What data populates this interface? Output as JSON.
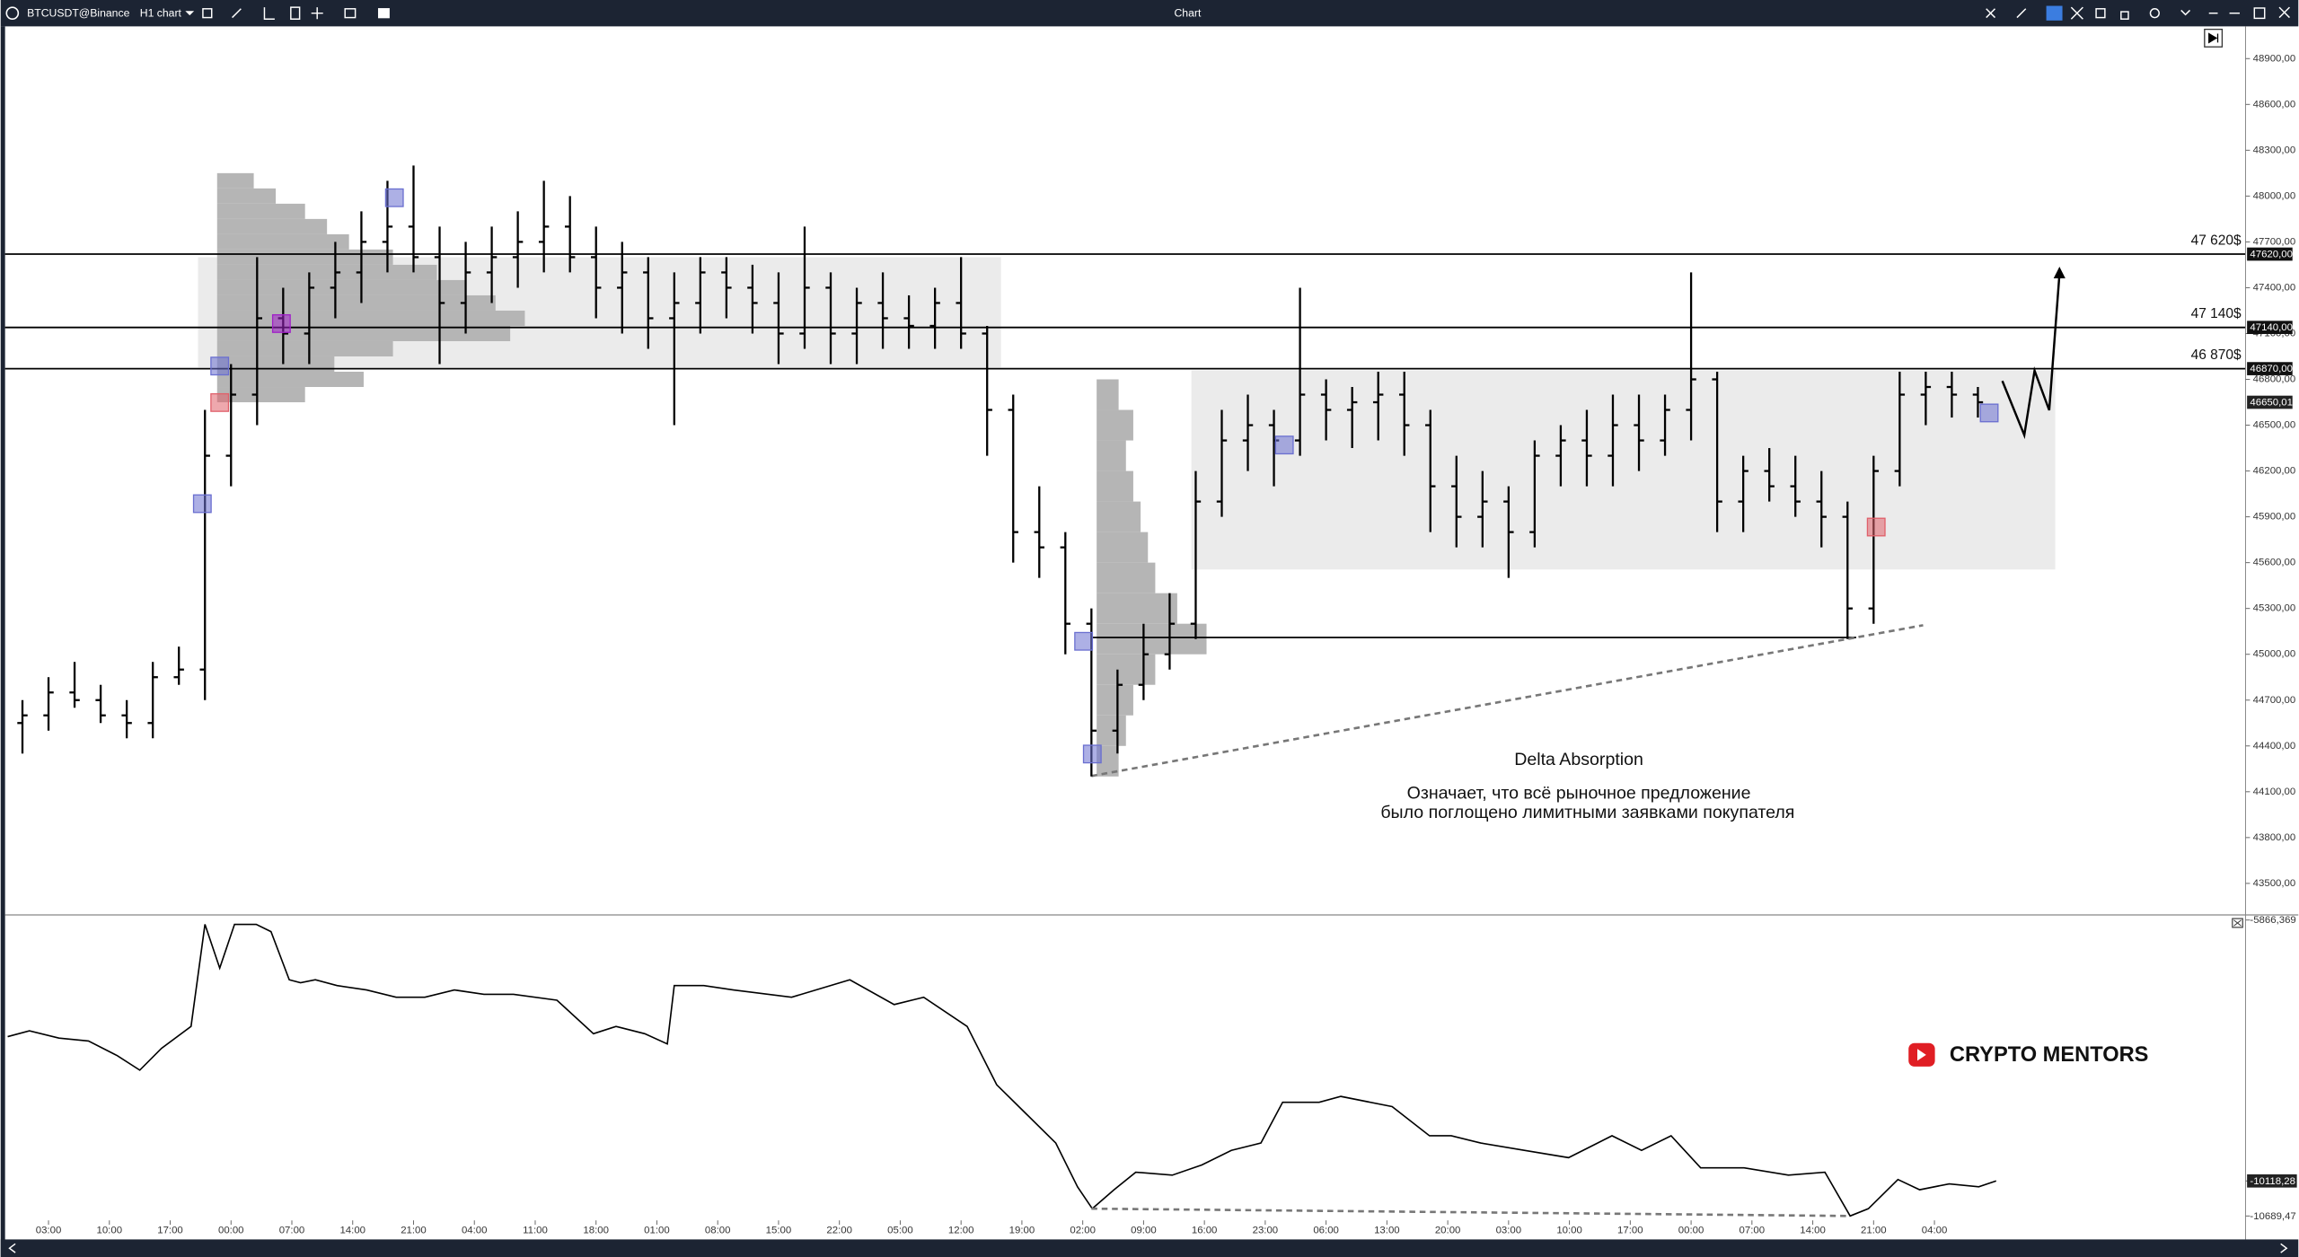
{
  "window": {
    "symbol": "BTCUSDT@Binance",
    "timeframe": "H1 chart",
    "title": "Chart"
  },
  "watermark": "CRYPTO MENTORS",
  "annotation_title": "Delta Absorption",
  "annotation_lines": [
    "Означает, что всё рыночное предложение",
    "было поглощено лимитными заявками покупателя"
  ],
  "chart_data": [
    {
      "type": "ohlc",
      "color": "#000000",
      "xlim": [
        -5,
        252.8
      ],
      "ylim": [
        43308,
        49111
      ],
      "yticks": [
        {
          "value": 48900,
          "label": "48900,00"
        },
        {
          "value": 48600,
          "label": "48600,00"
        },
        {
          "value": 48300,
          "label": "48300,00"
        },
        {
          "value": 48000,
          "label": "48000,00"
        },
        {
          "value": 47700,
          "label": "47700,00"
        },
        {
          "value": 47400,
          "label": "47400,00"
        },
        {
          "value": 47100,
          "label": "47100,00"
        },
        {
          "value": 46800,
          "label": "46800,00"
        },
        {
          "value": 46500,
          "label": "46500,00"
        },
        {
          "value": 46200,
          "label": "46200,00"
        },
        {
          "value": 45900,
          "label": "45900,00"
        },
        {
          "value": 45600,
          "label": "45600,00"
        },
        {
          "value": 45300,
          "label": "45300,00"
        },
        {
          "value": 45000,
          "label": "45000,00"
        },
        {
          "value": 44700,
          "label": "44700,00"
        },
        {
          "value": 44400,
          "label": "44400,00"
        },
        {
          "value": 44100,
          "label": "44100,00"
        },
        {
          "value": 43800,
          "label": "43800,00"
        },
        {
          "value": 43500,
          "label": "43500,00"
        }
      ],
      "x": [
        -3,
        0,
        3,
        6,
        9,
        12,
        15,
        18,
        21,
        24,
        27,
        30,
        33,
        36,
        39,
        42,
        45,
        48,
        51,
        54,
        57,
        60,
        63,
        66,
        69,
        72,
        75,
        78,
        81,
        84,
        87,
        90,
        93,
        96,
        99,
        102,
        105,
        108,
        111,
        114,
        117,
        120,
        123,
        126,
        129,
        132,
        135,
        138,
        141,
        144,
        147,
        150,
        153,
        156,
        159,
        162,
        165,
        168,
        171,
        174,
        177,
        180,
        183,
        186,
        189,
        192,
        195,
        198,
        201,
        204,
        207,
        210,
        213,
        216,
        219,
        222
      ],
      "open": [
        44550,
        44600,
        44750,
        44700,
        44600,
        44550,
        44850,
        44900,
        46300,
        46700,
        47200,
        47100,
        47400,
        47500,
        47700,
        47800,
        47600,
        47300,
        47500,
        47600,
        47700,
        47800,
        47600,
        47400,
        47500,
        47200,
        47300,
        47500,
        47400,
        47300,
        47100,
        47400,
        47100,
        47300,
        47200,
        47150,
        47300,
        47100,
        46600,
        45800,
        45700,
        45200,
        44500,
        44800,
        45000,
        45200,
        46000,
        46400,
        46500,
        46400,
        46700,
        46600,
        46650,
        46700,
        46500,
        46100,
        45900,
        46000,
        45800,
        46300,
        46400,
        46300,
        46500,
        46400,
        46600,
        46800,
        46000,
        46200,
        46100,
        46000,
        45900,
        45300,
        46200,
        46700,
        46750,
        46700
      ],
      "high": [
        44700,
        44850,
        44950,
        44800,
        44700,
        44950,
        45050,
        46600,
        46900,
        47600,
        47400,
        47500,
        47700,
        47900,
        48100,
        48200,
        47800,
        47700,
        47800,
        47900,
        48100,
        48000,
        47800,
        47700,
        47600,
        47500,
        47600,
        47600,
        47550,
        47500,
        47800,
        47500,
        47400,
        47500,
        47350,
        47400,
        47600,
        47150,
        46700,
        46100,
        45800,
        45300,
        44900,
        45200,
        45400,
        46200,
        46600,
        46700,
        46600,
        47400,
        46800,
        46750,
        46850,
        46850,
        46600,
        46300,
        46200,
        46100,
        46400,
        46500,
        46600,
        46700,
        46700,
        46700,
        47500,
        46850,
        46300,
        46350,
        46300,
        46200,
        46000,
        46300,
        46850,
        46850,
        46850,
        46750
      ],
      "low": [
        44350,
        44500,
        44650,
        44550,
        44450,
        44450,
        44800,
        44700,
        46100,
        46500,
        46900,
        46900,
        47200,
        47300,
        47500,
        47500,
        46900,
        47100,
        47300,
        47400,
        47500,
        47500,
        47200,
        47100,
        47000,
        46500,
        47100,
        47200,
        47100,
        46900,
        47000,
        46900,
        46900,
        47000,
        47000,
        47000,
        47000,
        46300,
        45600,
        45500,
        45000,
        44200,
        44350,
        44700,
        44900,
        45100,
        45900,
        46200,
        46100,
        46300,
        46400,
        46350,
        46400,
        46300,
        45800,
        45700,
        45700,
        45500,
        45700,
        46100,
        46100,
        46100,
        46200,
        46300,
        46400,
        45800,
        45800,
        46000,
        45900,
        45700,
        45100,
        45200,
        46100,
        46500,
        46550,
        46550
      ],
      "close": [
        44600,
        44750,
        44700,
        44600,
        44550,
        44850,
        44900,
        46300,
        46700,
        47200,
        47100,
        47400,
        47500,
        47700,
        47800,
        47600,
        47300,
        47500,
        47600,
        47700,
        47800,
        47600,
        47400,
        47500,
        47200,
        47300,
        47500,
        47400,
        47300,
        47100,
        47400,
        47100,
        47300,
        47200,
        47150,
        47300,
        47100,
        46600,
        45800,
        45700,
        45200,
        44500,
        44800,
        45000,
        45200,
        46000,
        46400,
        46500,
        46400,
        46700,
        46600,
        46650,
        46700,
        46500,
        46100,
        45900,
        46000,
        45800,
        46300,
        46400,
        46300,
        46500,
        46400,
        46600,
        46800,
        46000,
        46200,
        46100,
        46000,
        45900,
        45300,
        46200,
        46700,
        46750,
        46700,
        46650.01
      ],
      "last_price": {
        "value": 46650.01,
        "label": "46650,01"
      },
      "levels": [
        {
          "value": 47620,
          "label": "47 620$",
          "axis_label": "47620,00"
        },
        {
          "value": 47140,
          "label": "47 140$",
          "axis_label": "47140,00"
        },
        {
          "value": 46870,
          "label": "46 870$",
          "axis_label": "46870,00"
        }
      ],
      "zones": [
        {
          "x": [
            17.2,
            109.6
          ],
          "y": [
            46878,
            47600
          ],
          "color": "#ebebeb"
        },
        {
          "x": [
            131.5,
            230.9
          ],
          "y": [
            45555,
            46858
          ],
          "color": "#ebebeb"
        }
      ],
      "lines": [
        {
          "x": [
            120,
            208
          ],
          "y": [
            45110,
            45110
          ],
          "style": "solid"
        },
        {
          "x": [
            120,
            215.7
          ],
          "y": [
            44203,
            45190
          ],
          "style": "dashed"
        }
      ],
      "volume_profiles": [
        {
          "x": 19.4,
          "color": "#b5b5b5",
          "price": [
            48100,
            48000,
            47900,
            47800,
            47700,
            47600,
            47500,
            47400,
            47300,
            47200,
            47100,
            47000,
            46900,
            46800,
            46700
          ],
          "volume": [
            25,
            40,
            60,
            75,
            90,
            120,
            150,
            170,
            190,
            210,
            200,
            120,
            80,
            100,
            60
          ]
        },
        {
          "x": 120.6,
          "color": "#b5b5b5",
          "price": [
            46700,
            46500,
            46300,
            46100,
            45900,
            45700,
            45500,
            45300,
            45100,
            44900,
            44700,
            44500,
            44300
          ],
          "volume": [
            15,
            25,
            20,
            25,
            30,
            35,
            40,
            55,
            75,
            40,
            25,
            20,
            15
          ]
        }
      ],
      "markers": [
        {
          "x": 17.7,
          "y": 45986,
          "color": "#6a6fd0"
        },
        {
          "x": 19.7,
          "y": 46887,
          "color": "#6a6fd0"
        },
        {
          "x": 19.7,
          "y": 46648,
          "color": "#e0606a"
        },
        {
          "x": 26.8,
          "y": 47165,
          "color": "#a020c8"
        },
        {
          "x": 39.8,
          "y": 47989,
          "color": "#6a6fd0"
        },
        {
          "x": 119.1,
          "y": 45085,
          "color": "#6a6fd0"
        },
        {
          "x": 120.1,
          "y": 44347,
          "color": "#6a6fd0"
        },
        {
          "x": 142.2,
          "y": 46370,
          "color": "#6a6fd0"
        },
        {
          "x": 210.3,
          "y": 45833,
          "color": "#e0606a"
        },
        {
          "x": 223.3,
          "y": 46580,
          "color": "#6a6fd0"
        }
      ]
    },
    {
      "type": "line",
      "color": "#000000",
      "xlim": [
        -5,
        252.8
      ],
      "ylim": [
        -10761,
        -5819
      ],
      "yticks": [
        {
          "value": -5866.369,
          "label": "-5866,369"
        },
        {
          "value": -10118.28,
          "label": "-10118,28"
        },
        {
          "value": -10689.47,
          "label": "-10689,47"
        }
      ],
      "xticks": [
        {
          "value": 0,
          "label": "03:00"
        },
        {
          "value": 7,
          "label": "10:00"
        },
        {
          "value": 14,
          "label": "17:00"
        },
        {
          "value": 21,
          "label": "00:00"
        },
        {
          "value": 28,
          "label": "07:00"
        },
        {
          "value": 35,
          "label": "14:00"
        },
        {
          "value": 42,
          "label": "21:00"
        },
        {
          "value": 49,
          "label": "04:00"
        },
        {
          "value": 56,
          "label": "11:00"
        },
        {
          "value": 63,
          "label": "18:00"
        },
        {
          "value": 70,
          "label": "01:00"
        },
        {
          "value": 77,
          "label": "08:00"
        },
        {
          "value": 84,
          "label": "15:00"
        },
        {
          "value": 91,
          "label": "22:00"
        },
        {
          "value": 98,
          "label": "05:00"
        },
        {
          "value": 105,
          "label": "12:00"
        },
        {
          "value": 112,
          "label": "19:00"
        },
        {
          "value": 119,
          "label": "02:00"
        },
        {
          "value": 126,
          "label": "09:00"
        },
        {
          "value": 133,
          "label": "16:00"
        },
        {
          "value": 140,
          "label": "23:00"
        },
        {
          "value": 147,
          "label": "06:00"
        },
        {
          "value": 154,
          "label": "13:00"
        },
        {
          "value": 161,
          "label": "20:00"
        },
        {
          "value": 168,
          "label": "03:00"
        },
        {
          "value": 175,
          "label": "10:00"
        },
        {
          "value": 182,
          "label": "17:00"
        },
        {
          "value": 189,
          "label": "00:00"
        },
        {
          "value": 196,
          "label": "07:00"
        },
        {
          "value": 203,
          "label": "14:00"
        },
        {
          "value": 210,
          "label": "21:00"
        },
        {
          "value": 217,
          "label": "04:00"
        }
      ],
      "x": [
        -4.7,
        -2.2,
        1.2,
        4.6,
        7.9,
        10.5,
        13.0,
        16.4,
        18.0,
        19.7,
        21.4,
        23.9,
        25.6,
        27.7,
        29.0,
        30.7,
        33.2,
        36.6,
        40.0,
        43.3,
        46.7,
        50.1,
        53.5,
        58.5,
        62.7,
        65.3,
        68.6,
        71.2,
        72.0,
        75.4,
        78.8,
        85.5,
        92.2,
        97.3,
        100.7,
        105.7,
        109.1,
        112.5,
        115.9,
        118.4,
        120.1,
        122.6,
        125.1,
        129.3,
        132.7,
        136.1,
        139.5,
        142.0,
        146.2,
        148.7,
        154.6,
        158.9,
        161.4,
        164.8,
        169.8,
        174.9,
        179.9,
        183.3,
        186.7,
        190.1,
        195.1,
        200.2,
        204.4,
        207.3,
        209.4,
        212.8,
        215.3,
        218.7,
        222.1,
        224.1
      ],
      "values": [
        -7767,
        -7672,
        -7791,
        -7838,
        -8076,
        -8313,
        -7957,
        -7600,
        -5937,
        -6650,
        -5937,
        -5937,
        -6056,
        -6840,
        -6888,
        -6840,
        -6935,
        -7006,
        -7125,
        -7125,
        -7006,
        -7078,
        -7078,
        -7173,
        -7719,
        -7600,
        -7719,
        -7886,
        -6935,
        -6935,
        -7006,
        -7125,
        -6840,
        -7244,
        -7125,
        -7600,
        -8551,
        -9026,
        -9501,
        -10214,
        -10570,
        -10262,
        -9976,
        -10024,
        -9858,
        -9620,
        -9501,
        -8836,
        -8836,
        -8741,
        -8907,
        -9382,
        -9382,
        -9501,
        -9620,
        -9739,
        -9382,
        -9620,
        -9382,
        -9905,
        -9905,
        -10024,
        -9976,
        -10689.47,
        -10570,
        -10095,
        -10262,
        -10166,
        -10214,
        -10118.28
      ],
      "lines": [
        {
          "x": [
            120,
            207
          ],
          "y": [
            -10570,
            -10689
          ],
          "style": "dashed"
        }
      ]
    }
  ]
}
